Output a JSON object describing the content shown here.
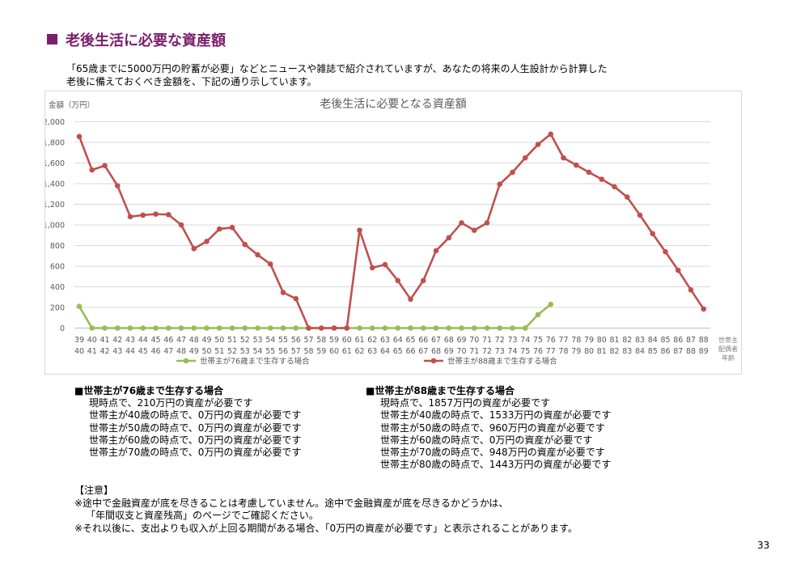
{
  "title": "老後生活に必要な資産額",
  "intro": [
    "「65歳までに5000万円の貯蓄が必要」などとニュースや雑誌で紹介されていますが、あなたの将来の人生設計から計算した",
    "老後に備えておくべき金額を、下記の通り示しています。"
  ],
  "colors": {
    "title": "#7b1e6b",
    "series76": "#9bbb59",
    "series88": "#c0504d",
    "grid": "#d9d9d9"
  },
  "chart_data": {
    "type": "line",
    "title": "老後生活に必要となる資産額",
    "ylabel": "金額（万円）",
    "xlabel": "世帯主配偶者年齢",
    "ylim": [
      0,
      2000
    ],
    "yticks": [
      "0",
      "200",
      "400",
      "600",
      "800",
      "1,000",
      "1,200",
      "1,400",
      "1,600",
      "1,800",
      "2,000"
    ],
    "grid": true,
    "legend": "bottom",
    "x_primary": [
      "39",
      "40",
      "41",
      "42",
      "43",
      "44",
      "45",
      "46",
      "47",
      "48",
      "49",
      "50",
      "51",
      "52",
      "53",
      "54",
      "55",
      "56",
      "57",
      "58",
      "59",
      "60",
      "61",
      "62",
      "63",
      "64",
      "65",
      "66",
      "67",
      "68",
      "69",
      "70",
      "71",
      "72",
      "73",
      "74",
      "75",
      "76",
      "77",
      "78",
      "79",
      "80",
      "81",
      "82",
      "83",
      "84",
      "85",
      "86",
      "87",
      "88"
    ],
    "x_secondary": [
      "40",
      "41",
      "42",
      "43",
      "44",
      "45",
      "46",
      "47",
      "48",
      "49",
      "50",
      "51",
      "52",
      "53",
      "54",
      "55",
      "56",
      "57",
      "58",
      "59",
      "60",
      "61",
      "62",
      "63",
      "64",
      "65",
      "66",
      "67",
      "68",
      "69",
      "70",
      "71",
      "72",
      "73",
      "74",
      "75",
      "76",
      "77",
      "78",
      "79",
      "80",
      "81",
      "82",
      "83",
      "84",
      "85",
      "86",
      "87",
      "88",
      "89"
    ],
    "series": [
      {
        "name": "世帯主が76歳まで生存する場合",
        "color": "#9bbb59",
        "values": [
          210,
          0,
          0,
          0,
          0,
          0,
          0,
          0,
          0,
          0,
          0,
          0,
          0,
          0,
          0,
          0,
          0,
          0,
          0,
          0,
          0,
          0,
          0,
          0,
          0,
          0,
          0,
          0,
          0,
          0,
          0,
          0,
          0,
          0,
          0,
          0,
          130,
          230
        ]
      },
      {
        "name": "世帯主が88歳まで生存する場合",
        "color": "#c0504d",
        "values": [
          1857,
          1533,
          1575,
          1380,
          1080,
          1095,
          1105,
          1100,
          1000,
          770,
          840,
          960,
          975,
          810,
          710,
          620,
          345,
          285,
          0,
          0,
          0,
          0,
          948,
          585,
          615,
          460,
          280,
          460,
          750,
          875,
          1020,
          948,
          1020,
          1395,
          1510,
          1650,
          1780,
          1880,
          1650,
          1580,
          1510,
          1443,
          1370,
          1270,
          1095,
          915,
          740,
          560,
          370,
          185
        ]
      }
    ]
  },
  "summary_76": {
    "heading": "■世帯主が76歳まで生存する場合",
    "lines": [
      "現時点で、210万円の資産が必要です",
      "世帯主が40歳の時点で、0万円の資産が必要です",
      "世帯主が50歳の時点で、0万円の資産が必要です",
      "世帯主が60歳の時点で、0万円の資産が必要です",
      "世帯主が70歳の時点で、0万円の資産が必要です"
    ]
  },
  "summary_88": {
    "heading": "■世帯主が88歳まで生存する場合",
    "lines": [
      "現時点で、1857万円の資産が必要です",
      "世帯主が40歳の時点で、1533万円の資産が必要です",
      "世帯主が50歳の時点で、960万円の資産が必要です",
      "世帯主が60歳の時点で、0万円の資産が必要です",
      "世帯主が70歳の時点で、948万円の資産が必要です",
      "世帯主が80歳の時点で、1443万円の資産が必要です"
    ]
  },
  "notes": {
    "heading": "【注意】",
    "lines": [
      "※途中で金融資産が底を尽きることは考慮していません。途中で金融資産が底を尽きるかどうかは、",
      "「年間収支と資産残高」のページでご確認ください。",
      "※それ以後に、支出よりも収入が上回る期間がある場合、「0万円の資産が必要です」と表示されることがあります。"
    ]
  },
  "page_number": "33"
}
